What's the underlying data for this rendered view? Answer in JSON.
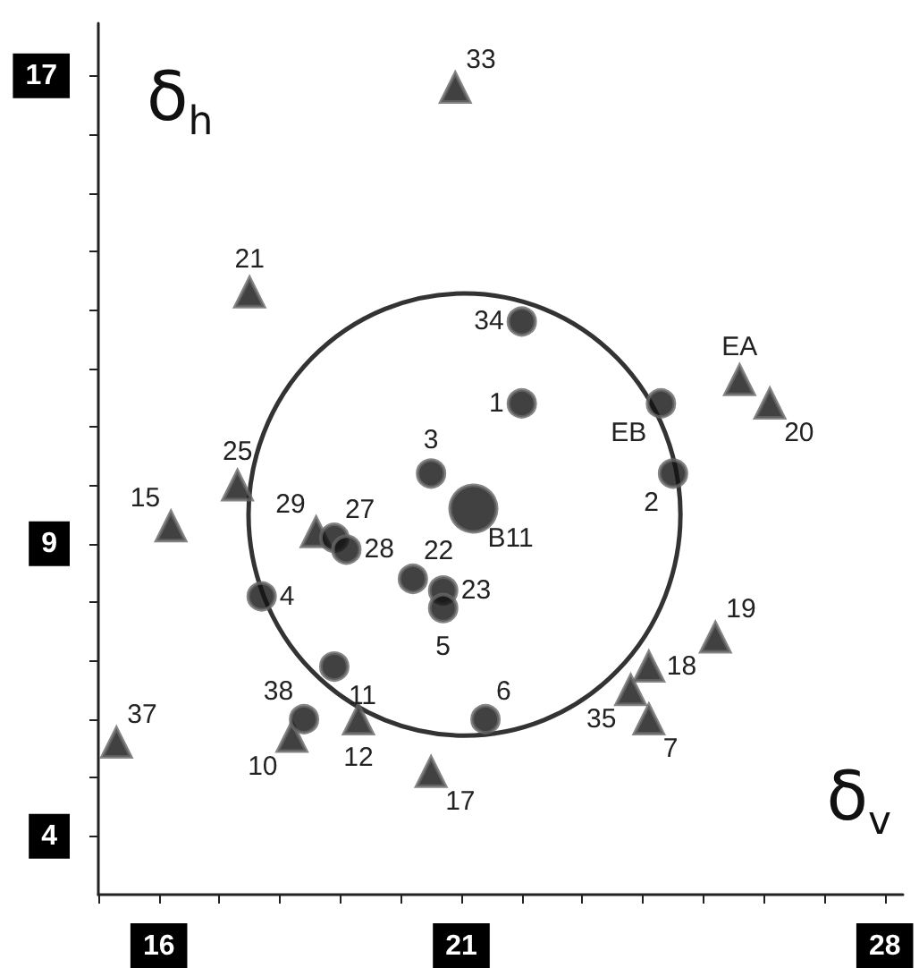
{
  "chart_data": {
    "type": "scatter",
    "xlabel": "δ$_{v}$",
    "ylabel": "δ$_{h}$",
    "xlim": [
      15,
      28.3
    ],
    "ylim": [
      3,
      17.9
    ],
    "xticks": [
      {
        "value": 15,
        "label": null
      },
      16,
      {
        "value": 17,
        "label": null
      },
      {
        "value": 18,
        "label": null
      },
      {
        "value": 19,
        "label": null
      },
      {
        "value": 20,
        "label": null
      },
      21,
      {
        "value": 22,
        "label": null
      },
      {
        "value": 23,
        "label": null
      },
      {
        "value": 24,
        "label": null
      },
      {
        "value": 25,
        "label": null
      },
      {
        "value": 26,
        "label": null
      },
      {
        "value": 27,
        "label": null
      },
      28
    ],
    "yticks": [
      4,
      {
        "value": 5,
        "label": null
      },
      {
        "value": 6,
        "label": null
      },
      {
        "value": 7,
        "label": null
      },
      {
        "value": 8,
        "label": null
      },
      9,
      {
        "value": 10,
        "label": null
      },
      {
        "value": 11,
        "label": null
      },
      {
        "value": 12,
        "label": null
      },
      {
        "value": 13,
        "label": null
      },
      {
        "value": 14,
        "label": null
      },
      {
        "value": 15,
        "label": null
      },
      {
        "value": 16,
        "label": null
      },
      17
    ],
    "grid": false,
    "series": [
      {
        "marker": "circle",
        "color": "#111111",
        "x": [
          22.0,
          22.0,
          24.3,
          20.5,
          24.5,
          18.9,
          19.1,
          20.2,
          20.7,
          20.7,
          17.7,
          18.9,
          18.4,
          21.4
        ],
        "values": [
          12.8,
          11.4,
          11.4,
          10.2,
          10.2,
          9.1,
          8.9,
          8.4,
          8.2,
          7.9,
          8.1,
          6.9,
          6.0,
          6.0
        ]
      },
      {
        "marker": "triangle",
        "color": "#111111",
        "x": [
          20.9,
          17.5,
          25.6,
          26.1,
          17.3,
          16.2,
          18.6,
          18.2,
          19.3,
          20.5,
          23.8,
          24.1,
          24.1,
          25.2,
          15.3
        ],
        "values": [
          16.8,
          13.3,
          11.8,
          11.4,
          10.0,
          9.3,
          9.2,
          5.7,
          6.0,
          5.1,
          6.5,
          6.9,
          6.0,
          7.4,
          5.6
        ]
      },
      {
        "marker": "circle",
        "color": "#111111",
        "x": [
          21.2
        ],
        "values": [
          9.6
        ]
      }
    ],
    "annotations": [
      {
        "text": "34",
        "x": 22.0,
        "y": 12.8
      },
      {
        "text": "1",
        "x": 22.0,
        "y": 11.4
      },
      {
        "text": "EB",
        "x": 24.3,
        "y": 11.4
      },
      {
        "text": "3",
        "x": 20.5,
        "y": 10.2
      },
      {
        "text": "2",
        "x": 24.5,
        "y": 10.2
      },
      {
        "text": "27",
        "x": 18.9,
        "y": 9.1
      },
      {
        "text": "28",
        "x": 19.1,
        "y": 8.9
      },
      {
        "text": "22",
        "x": 20.2,
        "y": 8.4
      },
      {
        "text": "23",
        "x": 20.7,
        "y": 8.2
      },
      {
        "text": "5",
        "x": 20.7,
        "y": 7.9
      },
      {
        "text": "4",
        "x": 17.7,
        "y": 8.1
      },
      {
        "text": "11",
        "x": 18.9,
        "y": 6.9
      },
      {
        "text": "38",
        "x": 18.4,
        "y": 6.0
      },
      {
        "text": "6",
        "x": 21.4,
        "y": 6.0
      },
      {
        "text": "33",
        "x": 20.9,
        "y": 16.8
      },
      {
        "text": "21",
        "x": 17.5,
        "y": 13.3
      },
      {
        "text": "EA",
        "x": 25.6,
        "y": 11.8
      },
      {
        "text": "20",
        "x": 26.1,
        "y": 11.4
      },
      {
        "text": "25",
        "x": 17.3,
        "y": 10.0
      },
      {
        "text": "15",
        "x": 16.2,
        "y": 9.3
      },
      {
        "text": "29",
        "x": 18.6,
        "y": 9.2
      },
      {
        "text": "10",
        "x": 18.2,
        "y": 5.7
      },
      {
        "text": "12",
        "x": 19.3,
        "y": 6.0
      },
      {
        "text": "17",
        "x": 20.5,
        "y": 5.1
      },
      {
        "text": "35",
        "x": 23.8,
        "y": 6.5
      },
      {
        "text": "18",
        "x": 24.1,
        "y": 6.9
      },
      {
        "text": "7",
        "x": 24.1,
        "y": 6.0
      },
      {
        "text": "19",
        "x": 25.2,
        "y": 7.4
      },
      {
        "text": "37",
        "x": 15.3,
        "y": 5.6
      },
      {
        "text": "B11",
        "x": 21.2,
        "y": 9.6
      }
    ]
  }
}
